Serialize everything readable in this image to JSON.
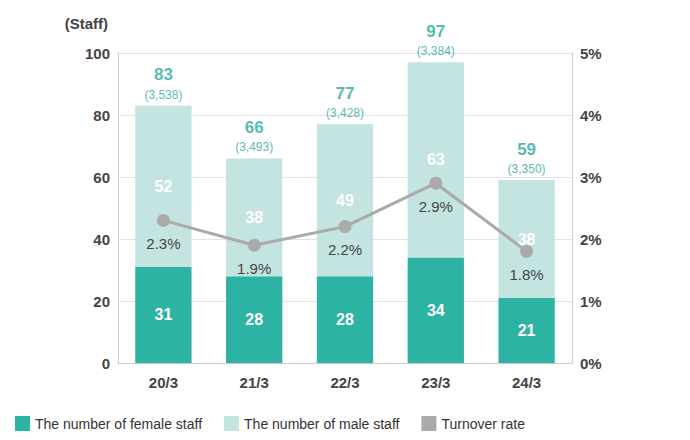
{
  "chart_data": {
    "type": "bar",
    "ylabel": "(Staff)",
    "categories": [
      "20/3",
      "21/3",
      "22/3",
      "23/3",
      "24/3"
    ],
    "series": [
      {
        "name": "The number of female staff",
        "color": "#2db3a3",
        "values": [
          31,
          28,
          28,
          34,
          21
        ]
      },
      {
        "name": "The number of male staff",
        "color": "#c3e4e0",
        "values": [
          52,
          38,
          49,
          63,
          38
        ]
      },
      {
        "name": "Turnover rate",
        "type": "line",
        "color": "#aaaaaa",
        "axis": "y2",
        "marker": "circle",
        "values": [
          2.3,
          1.9,
          2.2,
          2.9,
          1.8
        ],
        "value_labels": [
          "2.3%",
          "1.9%",
          "2.2%",
          "2.9%",
          "1.8%"
        ]
      }
    ],
    "totals": {
      "color": "#2aa89a",
      "values": [
        83,
        66,
        77,
        97,
        59
      ]
    },
    "headcount_labels": [
      "(3,538)",
      "(3,493)",
      "(3,428)",
      "(3,384)",
      "(3,350)"
    ],
    "ylim": [
      0,
      100
    ],
    "yticks": [
      0,
      20,
      40,
      60,
      80,
      100
    ],
    "y2lim": [
      0,
      5
    ],
    "y2ticks": [
      {
        "value": 0,
        "label": "0%"
      },
      {
        "value": 1,
        "label": "1%"
      },
      {
        "value": 2,
        "label": "2%"
      },
      {
        "value": 3,
        "label": "3%"
      },
      {
        "value": 4,
        "label": "4%"
      },
      {
        "value": 5,
        "label": "5%"
      }
    ],
    "stacked": true,
    "data_labels": true,
    "grid": true,
    "legend": "bottom-left"
  }
}
